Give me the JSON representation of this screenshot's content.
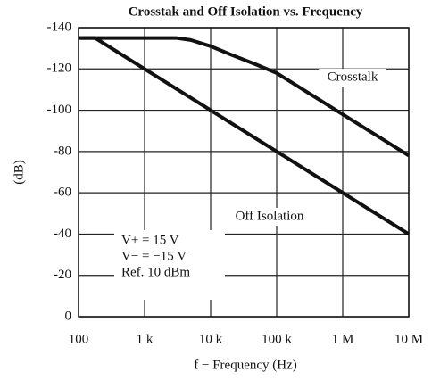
{
  "chart_data": {
    "type": "line",
    "title": "Crosstak and Off Isolation vs. Frequency",
    "xlabel": "f − Frequency (Hz)",
    "ylabel": "(dB)",
    "xscale": "log",
    "xlim": [
      100,
      10000000
    ],
    "xticks": [
      100,
      {
        "value": 1000,
        "label": "1 k"
      },
      {
        "value": 10000,
        "label": "10 k"
      },
      {
        "value": 100000,
        "label": "100 k"
      },
      {
        "value": 1000000,
        "label": "1 M"
      },
      {
        "value": 10000000,
        "label": "10 M"
      }
    ],
    "ylim": [
      0,
      -140
    ],
    "yticks": [
      0,
      -20,
      -40,
      -60,
      -80,
      -100,
      -120,
      -140
    ],
    "grid": true,
    "series": [
      {
        "name": "Crosstalk",
        "color": "#111111",
        "x": [
          100,
          300,
          1000,
          3000,
          5000,
          10000,
          20000,
          50000,
          100000,
          1000000,
          10000000
        ],
        "values": [
          -135,
          -135,
          -135,
          -135,
          -134,
          -131,
          -127,
          -122,
          -118,
          -98,
          -78
        ]
      },
      {
        "name": "Off Isolation",
        "color": "#111111",
        "x": [
          100,
          178,
          1000,
          10000,
          100000,
          1000000,
          10000000
        ],
        "values": [
          -135,
          -135,
          -120,
          -100,
          -80,
          -60,
          -40
        ]
      }
    ],
    "annotations": [
      "V+ = 15 V",
      "V− = −15 V",
      "Ref. 10 dBm"
    ]
  }
}
